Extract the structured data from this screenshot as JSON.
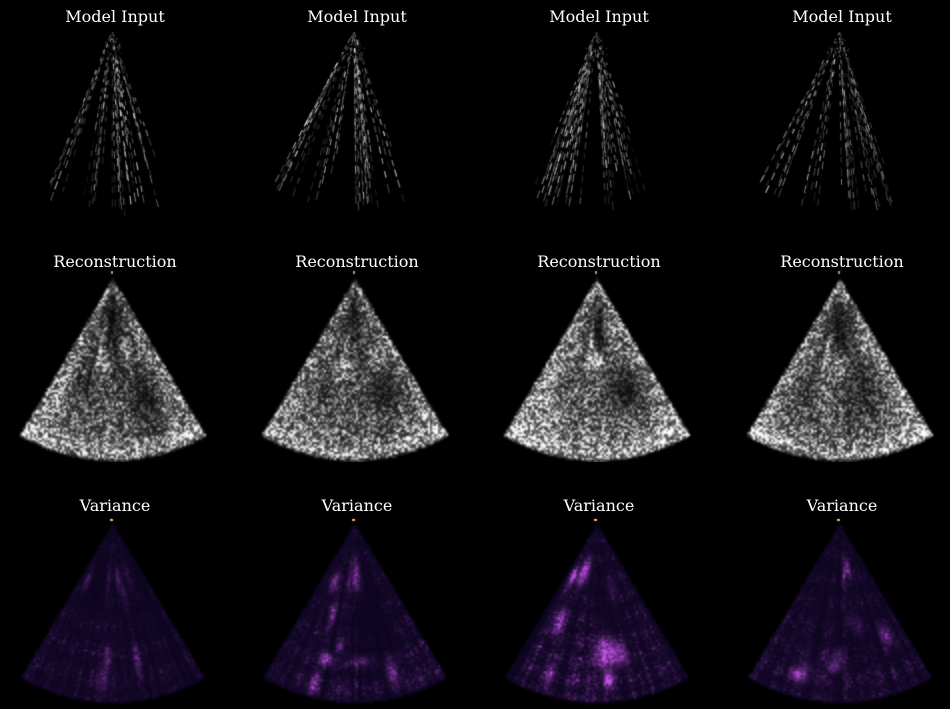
{
  "figure": {
    "background": "#000000",
    "title_color": "#ffffff",
    "rows": [
      {
        "title": "Model Input",
        "type": "model_input",
        "panels": [
          {
            "seed": 101,
            "density": 1.0
          },
          {
            "seed": 214,
            "density": 1.0
          },
          {
            "seed": 333,
            "density": 1.35
          },
          {
            "seed": 447,
            "density": 0.95
          }
        ]
      },
      {
        "title": "Reconstruction",
        "type": "reconstruction",
        "panels": [
          {
            "seed": 11,
            "gain": 1.0
          },
          {
            "seed": 27,
            "gain": 1.0
          },
          {
            "seed": 38,
            "gain": 1.2
          },
          {
            "seed": 49,
            "gain": 1.05
          }
        ]
      },
      {
        "title": "Variance",
        "type": "variance",
        "panels": [
          {
            "seed": 5,
            "gain": 0.55
          },
          {
            "seed": 16,
            "gain": 0.85
          },
          {
            "seed": 23,
            "gain": 1.25
          },
          {
            "seed": 31,
            "gain": 0.8
          }
        ]
      }
    ],
    "palette": {
      "variance_low": "#0d0520",
      "variance_high": "#c653ea",
      "apex_marker": "#ffab62"
    }
  }
}
